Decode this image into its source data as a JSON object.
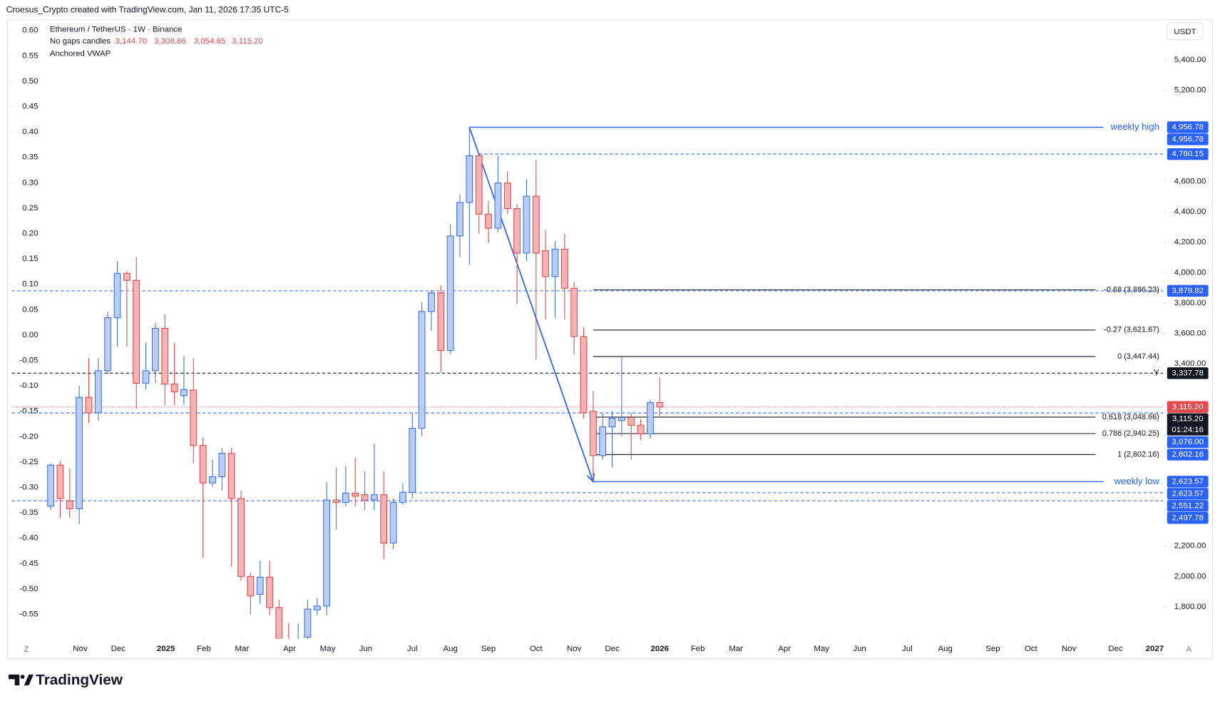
{
  "header": {
    "credit": "Croesus_Crypto created with TradingView.com, Jan 11, 2026 17:35 UTC-5"
  },
  "chart_data": {
    "type": "candlestick",
    "title": "Ethereum / TetherUS · 1W · Binance",
    "candle_style": "No gaps candles",
    "ohlc_readout": {
      "values": [
        3144.7,
        3308.86,
        3054.65,
        3115.2
      ],
      "value_labels": [
        "3,144.70",
        "3,308.86",
        "3,054.65",
        "3,115.20"
      ]
    },
    "indicator": "Anchored VWAP",
    "currency": "USDT",
    "open": [
      2462,
      2733,
      2497,
      2446,
      3179,
      3077,
      3354,
      3703,
      3995,
      3949,
      3272,
      3354,
      3633,
      3267,
      3190,
      3226,
      2862,
      2615,
      2656,
      2810,
      2513,
      2000,
      1882,
      1995,
      1795,
      1580,
      1470,
      1600,
      1780,
      1805,
      2503,
      2487,
      2548,
      2538,
      2503,
      2538,
      2220,
      2487,
      2554,
      2975,
      3744,
      3867,
      3487,
      4241,
      4462,
      4769,
      4385,
      4292,
      4590,
      4421,
      4128,
      4503,
      4144,
      3974,
      4154,
      3897,
      3579,
      3087,
      2795,
      2985,
      3026,
      3046,
      2995,
      2938,
      3144.7
    ],
    "high": [
      2744,
      2759,
      2713,
      3256,
      3436,
      3436,
      3744,
      4077,
      4010,
      4103,
      3538,
      3667,
      3728,
      3538,
      3450,
      3436,
      2913,
      2770,
      2846,
      2846,
      2564,
      2026,
      2103,
      2103,
      1846,
      1692,
      1690,
      1846,
      1856,
      2620,
      2718,
      2728,
      2780,
      2692,
      2872,
      2692,
      2513,
      2615,
      3077,
      3805,
      3887,
      3918,
      4318,
      4513,
      4956.78,
      4790,
      4472,
      4769,
      4667,
      4451,
      4615,
      4744,
      4282,
      4205,
      4256,
      3938,
      3641,
      3221,
      3077,
      3087,
      3446,
      3077,
      3036,
      3164,
      3308.86
    ],
    "low": [
      2436,
      2385,
      2385,
      2344,
      3010,
      3026,
      3333,
      3513,
      3513,
      3103,
      3231,
      3272,
      3128,
      3128,
      3130,
      2744,
      2123,
      2590,
      2564,
      2067,
      1974,
      1749,
      1821,
      1744,
      1390,
      1385,
      1420,
      1540,
      1744,
      1744,
      2308,
      2462,
      2462,
      2436,
      2436,
      2113,
      2180,
      2472,
      2513,
      2923,
      3615,
      3344,
      3462,
      4103,
      4051,
      4256,
      4195,
      4267,
      4385,
      3795,
      4077,
      3426,
      3692,
      3703,
      3692,
      3462,
      3041,
      2623.57,
      2769,
      2718,
      2923,
      2769,
      2897,
      2908,
      3054.65
    ],
    "close": [
      2733,
      2513,
      2446,
      3179,
      3077,
      3354,
      3703,
      3995,
      3949,
      3272,
      3354,
      3633,
      3267,
      3215,
      3230,
      2862,
      2615,
      2656,
      2810,
      2513,
      2000,
      1872,
      1995,
      1795,
      1590,
      1470,
      1580,
      1785,
      1805,
      2503,
      2487,
      2548,
      2528,
      2503,
      2538,
      2220,
      2487,
      2554,
      2975,
      3744,
      3867,
      3487,
      4241,
      4462,
      4769,
      4385,
      4292,
      4590,
      4421,
      4128,
      4503,
      4128,
      3974,
      4154,
      3897,
      3579,
      3077,
      2795,
      2985,
      3041,
      3046,
      2995,
      2938,
      3144,
      3115.2
    ],
    "up_color": "#3f74e6",
    "up_fill": "#b9cdf7",
    "down_color": "#e5484d",
    "down_fill": "#f6b3b5",
    "xlim": [
      -4.1,
      116.9
    ],
    "xticks": [
      {
        "value": 3.1,
        "label": "Nov"
      },
      {
        "value": 7.1,
        "label": "Dec"
      },
      {
        "value": 12.1,
        "label": "2025"
      },
      {
        "value": 16.1,
        "label": "Feb"
      },
      {
        "value": 20.1,
        "label": "Mar"
      },
      {
        "value": 25.1,
        "label": "Apr"
      },
      {
        "value": 29.1,
        "label": "May"
      },
      {
        "value": 33.1,
        "label": "Jun"
      },
      {
        "value": 38.0,
        "label": "Jul"
      },
      {
        "value": 42.0,
        "label": "Aug"
      },
      {
        "value": 46.0,
        "label": "Sep"
      },
      {
        "value": 51.0,
        "label": "Oct"
      },
      {
        "value": 55.0,
        "label": "Nov"
      },
      {
        "value": 59.0,
        "label": "Dec"
      },
      {
        "value": 64.0,
        "label": "2026"
      },
      {
        "value": 68.0,
        "label": "Feb"
      },
      {
        "value": 72.0,
        "label": "Mar"
      },
      {
        "value": 77.1,
        "label": "Apr"
      },
      {
        "value": 81.0,
        "label": "May"
      },
      {
        "value": 85.0,
        "label": "Jun"
      },
      {
        "value": 90.0,
        "label": "Jul"
      },
      {
        "value": 94.0,
        "label": "Aug"
      },
      {
        "value": 99.0,
        "label": "Sep"
      },
      {
        "value": 103.0,
        "label": "Oct"
      },
      {
        "value": 107.0,
        "label": "Nov"
      },
      {
        "value": 111.9,
        "label": "Dec"
      },
      {
        "value": 116.0,
        "label": "2027"
      }
    ],
    "ylim": [
      1590,
      5651
    ],
    "yticks": [
      {
        "value": 5400,
        "label": "5,400.00"
      },
      {
        "value": 5200,
        "label": "5,200.00"
      },
      {
        "value": 4600,
        "label": "4,600.00"
      },
      {
        "value": 4400,
        "label": "4,400.00"
      },
      {
        "value": 4200,
        "label": "4,200.00"
      },
      {
        "value": 4000,
        "label": "4,000.00"
      },
      {
        "value": 3800,
        "label": "3,800.00"
      },
      {
        "value": 3600,
        "label": "3,600.00"
      },
      {
        "value": 3400,
        "label": "3,400.00"
      },
      {
        "value": 2200,
        "label": "2,200.00"
      },
      {
        "value": 2000,
        "label": "2,000.00"
      },
      {
        "value": 1800,
        "label": "1,800.00"
      }
    ],
    "y2lim": [
      -0.598,
      0.617
    ],
    "y2ticks": [
      {
        "value": 0.6,
        "label": "0.60"
      },
      {
        "value": 0.55,
        "label": "0.55"
      },
      {
        "value": 0.5,
        "label": "0.50"
      },
      {
        "value": 0.45,
        "label": "0.45"
      },
      {
        "value": 0.4,
        "label": "0.40"
      },
      {
        "value": 0.35,
        "label": "0.35"
      },
      {
        "value": 0.3,
        "label": "0.30"
      },
      {
        "value": 0.25,
        "label": "0.25"
      },
      {
        "value": 0.2,
        "label": "0.20"
      },
      {
        "value": 0.15,
        "label": "0.15"
      },
      {
        "value": 0.1,
        "label": "0.10"
      },
      {
        "value": 0.05,
        "label": "0.05"
      },
      {
        "value": 0,
        "label": "0.00"
      },
      {
        "value": -0.05,
        "label": "-0.05"
      },
      {
        "value": -0.1,
        "label": "-0.10"
      },
      {
        "value": -0.15,
        "label": "-0.15"
      },
      {
        "value": -0.2,
        "label": "-0.20"
      },
      {
        "value": -0.25,
        "label": "-0.25"
      },
      {
        "value": -0.3,
        "label": "-0.30"
      },
      {
        "value": -0.35,
        "label": "-0.35"
      },
      {
        "value": -0.4,
        "label": "-0.40"
      },
      {
        "value": -0.45,
        "label": "-0.45"
      },
      {
        "value": -0.5,
        "label": "-0.50"
      },
      {
        "value": -0.55,
        "label": "-0.55"
      }
    ],
    "levels": [
      {
        "value": 4956.78,
        "label": "weekly high",
        "start": 44,
        "color": "#2962ff",
        "style": "solid"
      },
      {
        "value": 4780.15,
        "start": 45,
        "color": "#2962ff",
        "style": "dashed"
      },
      {
        "value": 3879.82,
        "color": "#2962ff",
        "style": "dashed"
      },
      {
        "value": 3337.78,
        "label": "Y",
        "color": "#131722",
        "style": "dashed"
      },
      {
        "value": 3115.2,
        "color": "#e5484d",
        "style": "dotted"
      },
      {
        "value": 3076.0,
        "color": "#2962ff",
        "style": "dashed"
      },
      {
        "value": 2623.57,
        "label": "weekly low",
        "start": 57,
        "color": "#2962ff",
        "style": "solid"
      },
      {
        "value": 2551.22,
        "start": 37,
        "color": "#2962ff",
        "style": "dashed"
      },
      {
        "value": 2497.78,
        "color": "#2962ff",
        "style": "dashed"
      }
    ],
    "fib_start": 57,
    "fib": [
      {
        "value": 3886.23,
        "label": "-0.68 (3,886.23)"
      },
      {
        "value": 3621.67,
        "label": "-0.27 (3,621.67)"
      },
      {
        "value": 3447.44,
        "label": "0 (3,447.44)"
      },
      {
        "value": 3048.66,
        "label": "0.618 (3,048.66)"
      },
      {
        "value": 2940.25,
        "label": "0.786 (2,940.25)"
      },
      {
        "value": 2802.16,
        "label": "1 (2,802.16)"
      }
    ],
    "price_badges": [
      {
        "value": 4956.78,
        "label": "4,956.78",
        "color": "#2962ff"
      },
      {
        "value": 4956.78,
        "label": "4,956.78",
        "color": "#2962ff"
      },
      {
        "value": 4780.15,
        "label": "4,780.15",
        "color": "#2962ff"
      },
      {
        "value": 3879.82,
        "label": "3,879.82",
        "color": "#2962ff"
      },
      {
        "value": 3337.78,
        "label": "3,337.78",
        "color": "#131722"
      },
      {
        "value": 3115.2,
        "label": "3,115.20",
        "color": "#e5484d"
      },
      {
        "value": 3115.2,
        "label": "3,115.20",
        "color": "#131722"
      },
      {
        "value": 3076.0,
        "label": "3,076.00",
        "color": "#2962ff"
      },
      {
        "value": 2802.16,
        "label": "2,802.16",
        "color": "#2962ff"
      },
      {
        "value": 2623.57,
        "label": "2,623.57",
        "color": "#2962ff"
      },
      {
        "value": 2623.57,
        "label": "2,623.57",
        "color": "#2962ff"
      },
      {
        "value": 2551.22,
        "label": "2,551.22",
        "color": "#2962ff"
      },
      {
        "value": 2497.78,
        "label": "2,497.78",
        "color": "#2962ff"
      }
    ],
    "countdown": "01:24:16",
    "axis_buttons": {
      "left": "Z",
      "right": "A"
    }
  },
  "footer": {
    "logo": "TradingView"
  }
}
